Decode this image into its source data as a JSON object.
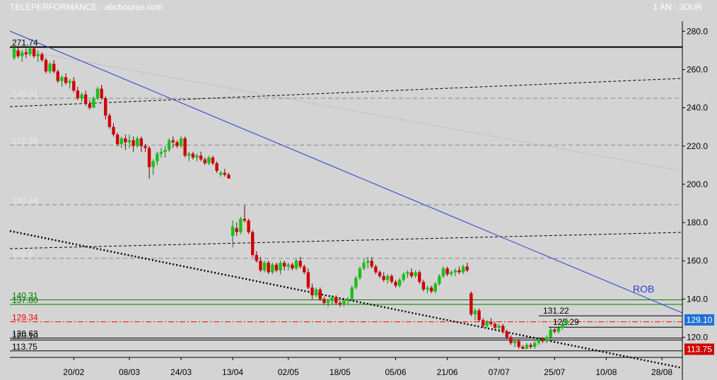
{
  "header": {
    "title": "TELEPERFORMANCE - abcbourse.com",
    "period": "1 AN - JOUR"
  },
  "chart_data": {
    "type": "candlestick",
    "ylim": [
      109,
      287
    ],
    "y_ticks": [
      120,
      140,
      160,
      180,
      200,
      220,
      240,
      260,
      280
    ],
    "y_tick_labels": [
      "120.0",
      "140.0",
      "160.0",
      "180.0",
      "200.0",
      "220.0",
      "240.0",
      "260.0",
      "280.0"
    ],
    "x_labels": [
      "20/02",
      "08/03",
      "24/03",
      "13/04",
      "02/05",
      "18/05",
      "05/06",
      "21/06",
      "07/07",
      "25/07",
      "10/08",
      "28/08"
    ],
    "x_label_index": [
      15,
      29,
      42,
      55,
      69,
      82,
      96,
      109,
      122,
      136,
      149,
      163
    ],
    "grid": false,
    "horizontal_levels": [
      {
        "label": "271.74",
        "value": 271.74,
        "color": "#000000",
        "style": "solid"
      },
      {
        "label": "245.91",
        "value": 245.0,
        "color": "#888888",
        "style": "dash"
      },
      {
        "label": "221.26",
        "value": 220.5,
        "color": "#888888",
        "style": "dash"
      },
      {
        "label": "190.44",
        "value": 189.3,
        "color": "#888888",
        "style": "dash"
      },
      {
        "label": "163.6",
        "value": 161.3,
        "color": "#888888",
        "style": "dash"
      },
      {
        "label": "140.31",
        "value": 139.6,
        "color": "#008000",
        "style": "solid"
      },
      {
        "label": "137.80",
        "value": 137.2,
        "color": "#008000",
        "style": "solid"
      },
      {
        "label": "129.34",
        "value": 128.1,
        "color": "#ff0000",
        "style": "dashdot"
      },
      {
        "label": "120.63",
        "value": 119.6,
        "color": "#000000",
        "style": "solid"
      },
      {
        "label": "120.10",
        "value": 118.6,
        "color": "#000000",
        "style": "solid"
      },
      {
        "label": "113.75",
        "value": 112.9,
        "color": "#000000",
        "style": "solid"
      }
    ],
    "inline_levels": [
      {
        "label": "131.22",
        "value": 131.22
      },
      {
        "label": "125.29",
        "value": 125.29
      }
    ],
    "last_price": {
      "label": "129.10",
      "value": 129.1,
      "color": "#1e6fd6"
    },
    "low_marker": {
      "label": "113.75",
      "value": 113.75,
      "color": "#d10000"
    },
    "trend_label": "ROB",
    "candles": [
      {
        "o": 266,
        "h": 272,
        "l": 265,
        "c": 271
      },
      {
        "o": 270,
        "h": 272,
        "l": 266,
        "c": 267
      },
      {
        "o": 267,
        "h": 270,
        "l": 264,
        "c": 269
      },
      {
        "o": 269,
        "h": 271,
        "l": 266,
        "c": 268
      },
      {
        "o": 268,
        "h": 272,
        "l": 267,
        "c": 271
      },
      {
        "o": 271,
        "h": 272,
        "l": 266,
        "c": 267
      },
      {
        "o": 267,
        "h": 270,
        "l": 264,
        "c": 268
      },
      {
        "o": 268,
        "h": 269,
        "l": 264,
        "c": 265
      },
      {
        "o": 265,
        "h": 266,
        "l": 258,
        "c": 259
      },
      {
        "o": 259,
        "h": 264,
        "l": 258,
        "c": 263
      },
      {
        "o": 263,
        "h": 265,
        "l": 258,
        "c": 259
      },
      {
        "o": 259,
        "h": 260,
        "l": 253,
        "c": 254
      },
      {
        "o": 254,
        "h": 257,
        "l": 251,
        "c": 256
      },
      {
        "o": 256,
        "h": 258,
        "l": 252,
        "c": 253
      },
      {
        "o": 253,
        "h": 255,
        "l": 250,
        "c": 254
      },
      {
        "o": 254,
        "h": 256,
        "l": 248,
        "c": 249
      },
      {
        "o": 249,
        "h": 251,
        "l": 244,
        "c": 245
      },
      {
        "o": 245,
        "h": 248,
        "l": 243,
        "c": 247
      },
      {
        "o": 247,
        "h": 249,
        "l": 241,
        "c": 242
      },
      {
        "o": 242,
        "h": 244,
        "l": 239,
        "c": 240
      },
      {
        "o": 240,
        "h": 246,
        "l": 240,
        "c": 245
      },
      {
        "o": 245,
        "h": 251,
        "l": 244,
        "c": 250
      },
      {
        "o": 250,
        "h": 252,
        "l": 244,
        "c": 245
      },
      {
        "o": 245,
        "h": 246,
        "l": 234,
        "c": 236
      },
      {
        "o": 236,
        "h": 237,
        "l": 229,
        "c": 230
      },
      {
        "o": 230,
        "h": 232,
        "l": 225,
        "c": 226
      },
      {
        "o": 226,
        "h": 227,
        "l": 220,
        "c": 221
      },
      {
        "o": 221,
        "h": 225,
        "l": 219,
        "c": 224
      },
      {
        "o": 224,
        "h": 226,
        "l": 218,
        "c": 222
      },
      {
        "o": 222,
        "h": 226,
        "l": 219,
        "c": 223
      },
      {
        "o": 223,
        "h": 225,
        "l": 217,
        "c": 220
      },
      {
        "o": 220,
        "h": 225,
        "l": 219,
        "c": 224
      },
      {
        "o": 224,
        "h": 225,
        "l": 217,
        "c": 220
      },
      {
        "o": 220,
        "h": 221,
        "l": 217,
        "c": 219
      },
      {
        "o": 219,
        "h": 220,
        "l": 203,
        "c": 209
      },
      {
        "o": 209,
        "h": 213,
        "l": 205,
        "c": 212
      },
      {
        "o": 212,
        "h": 217,
        "l": 210,
        "c": 216
      },
      {
        "o": 216,
        "h": 219,
        "l": 214,
        "c": 217
      },
      {
        "o": 217,
        "h": 220,
        "l": 214,
        "c": 218
      },
      {
        "o": 218,
        "h": 224,
        "l": 217,
        "c": 223
      },
      {
        "o": 223,
        "h": 225,
        "l": 219,
        "c": 222
      },
      {
        "o": 222,
        "h": 223,
        "l": 219,
        "c": 220
      },
      {
        "o": 220,
        "h": 225,
        "l": 219,
        "c": 224
      },
      {
        "o": 224,
        "h": 225,
        "l": 214,
        "c": 215
      },
      {
        "o": 215,
        "h": 217,
        "l": 212,
        "c": 216
      },
      {
        "o": 216,
        "h": 217,
        "l": 213,
        "c": 214
      },
      {
        "o": 214,
        "h": 216,
        "l": 212,
        "c": 215
      },
      {
        "o": 215,
        "h": 217,
        "l": 212,
        "c": 213
      },
      {
        "o": 213,
        "h": 214,
        "l": 210,
        "c": 211
      },
      {
        "o": 211,
        "h": 215,
        "l": 210,
        "c": 214
      },
      {
        "o": 214,
        "h": 215,
        "l": 210,
        "c": 211
      },
      {
        "o": 211,
        "h": 212,
        "l": 206,
        "c": 207
      },
      {
        "o": 205,
        "h": 207,
        "l": 204,
        "c": 206
      },
      {
        "o": 206,
        "h": 208,
        "l": 204,
        "c": 205
      },
      {
        "o": 205,
        "h": 206,
        "l": 203,
        "c": 203
      },
      {
        "o": 173,
        "h": 181,
        "l": 167,
        "c": 178
      },
      {
        "o": 177,
        "h": 180,
        "l": 173,
        "c": 175
      },
      {
        "o": 175,
        "h": 183,
        "l": 174,
        "c": 182
      },
      {
        "o": 182,
        "h": 189,
        "l": 180,
        "c": 181
      },
      {
        "o": 181,
        "h": 182,
        "l": 174,
        "c": 175
      },
      {
        "o": 175,
        "h": 176,
        "l": 162,
        "c": 163
      },
      {
        "o": 163,
        "h": 165,
        "l": 159,
        "c": 160
      },
      {
        "o": 160,
        "h": 162,
        "l": 154,
        "c": 155
      },
      {
        "o": 155,
        "h": 160,
        "l": 154,
        "c": 159
      },
      {
        "o": 159,
        "h": 160,
        "l": 153,
        "c": 154
      },
      {
        "o": 154,
        "h": 159,
        "l": 153,
        "c": 158
      },
      {
        "o": 158,
        "h": 159,
        "l": 154,
        "c": 155
      },
      {
        "o": 155,
        "h": 160,
        "l": 153,
        "c": 159
      },
      {
        "o": 159,
        "h": 160,
        "l": 155,
        "c": 157
      },
      {
        "o": 157,
        "h": 159,
        "l": 155,
        "c": 158
      },
      {
        "o": 158,
        "h": 159,
        "l": 155,
        "c": 156
      },
      {
        "o": 156,
        "h": 161,
        "l": 155,
        "c": 160
      },
      {
        "o": 160,
        "h": 162,
        "l": 156,
        "c": 157
      },
      {
        "o": 157,
        "h": 158,
        "l": 153,
        "c": 154
      },
      {
        "o": 154,
        "h": 156,
        "l": 145,
        "c": 146
      },
      {
        "o": 146,
        "h": 148,
        "l": 140,
        "c": 142
      },
      {
        "o": 142,
        "h": 146,
        "l": 141,
        "c": 145
      },
      {
        "o": 145,
        "h": 146,
        "l": 139,
        "c": 140
      },
      {
        "o": 140,
        "h": 141,
        "l": 137,
        "c": 138
      },
      {
        "o": 138,
        "h": 140,
        "l": 136,
        "c": 139
      },
      {
        "o": 139,
        "h": 142,
        "l": 137,
        "c": 141
      },
      {
        "o": 141,
        "h": 142,
        "l": 137,
        "c": 138
      },
      {
        "o": 138,
        "h": 139,
        "l": 136,
        "c": 137
      },
      {
        "o": 137,
        "h": 140,
        "l": 136,
        "c": 139
      },
      {
        "o": 139,
        "h": 141,
        "l": 137,
        "c": 140
      },
      {
        "o": 140,
        "h": 147,
        "l": 139,
        "c": 146
      },
      {
        "o": 146,
        "h": 152,
        "l": 145,
        "c": 151
      },
      {
        "o": 151,
        "h": 157,
        "l": 150,
        "c": 156
      },
      {
        "o": 156,
        "h": 161,
        "l": 155,
        "c": 159
      },
      {
        "o": 159,
        "h": 162,
        "l": 156,
        "c": 160
      },
      {
        "o": 160,
        "h": 162,
        "l": 156,
        "c": 157
      },
      {
        "o": 157,
        "h": 158,
        "l": 153,
        "c": 154
      },
      {
        "o": 154,
        "h": 155,
        "l": 151,
        "c": 152
      },
      {
        "o": 152,
        "h": 154,
        "l": 149,
        "c": 150
      },
      {
        "o": 150,
        "h": 153,
        "l": 148,
        "c": 152
      },
      {
        "o": 152,
        "h": 153,
        "l": 148,
        "c": 149
      },
      {
        "o": 149,
        "h": 150,
        "l": 146,
        "c": 147
      },
      {
        "o": 147,
        "h": 151,
        "l": 146,
        "c": 150
      },
      {
        "o": 150,
        "h": 154,
        "l": 149,
        "c": 153
      },
      {
        "o": 153,
        "h": 155,
        "l": 151,
        "c": 154
      },
      {
        "o": 154,
        "h": 156,
        "l": 151,
        "c": 152
      },
      {
        "o": 152,
        "h": 155,
        "l": 151,
        "c": 154
      },
      {
        "o": 154,
        "h": 155,
        "l": 148,
        "c": 149
      },
      {
        "o": 149,
        "h": 150,
        "l": 144,
        "c": 145
      },
      {
        "o": 145,
        "h": 147,
        "l": 143,
        "c": 146
      },
      {
        "o": 146,
        "h": 147,
        "l": 143,
        "c": 144
      },
      {
        "o": 144,
        "h": 149,
        "l": 143,
        "c": 148
      },
      {
        "o": 148,
        "h": 153,
        "l": 147,
        "c": 152
      },
      {
        "o": 152,
        "h": 157,
        "l": 151,
        "c": 156
      },
      {
        "o": 156,
        "h": 157,
        "l": 152,
        "c": 153
      },
      {
        "o": 153,
        "h": 155,
        "l": 152,
        "c": 154
      },
      {
        "o": 154,
        "h": 156,
        "l": 152,
        "c": 155
      },
      {
        "o": 155,
        "h": 157,
        "l": 153,
        "c": 154
      },
      {
        "o": 154,
        "h": 158,
        "l": 153,
        "c": 157
      },
      {
        "o": 157,
        "h": 159,
        "l": 154,
        "c": 155
      },
      {
        "o": 143,
        "h": 144,
        "l": 131,
        "c": 132
      },
      {
        "o": 132,
        "h": 135,
        "l": 129,
        "c": 134
      },
      {
        "o": 134,
        "h": 135,
        "l": 128,
        "c": 129
      },
      {
        "o": 129,
        "h": 130,
        "l": 125,
        "c": 126
      },
      {
        "o": 126,
        "h": 129,
        "l": 125,
        "c": 128
      },
      {
        "o": 128,
        "h": 130,
        "l": 126,
        "c": 127
      },
      {
        "o": 127,
        "h": 128,
        "l": 124,
        "c": 125
      },
      {
        "o": 125,
        "h": 127,
        "l": 124,
        "c": 126
      },
      {
        "o": 126,
        "h": 127,
        "l": 122,
        "c": 123
      },
      {
        "o": 123,
        "h": 124,
        "l": 119,
        "c": 120
      },
      {
        "o": 120,
        "h": 121,
        "l": 116,
        "c": 117
      },
      {
        "o": 117,
        "h": 119,
        "l": 115,
        "c": 118
      },
      {
        "o": 118,
        "h": 119,
        "l": 114,
        "c": 115
      },
      {
        "o": 115,
        "h": 116,
        "l": 113.75,
        "c": 114
      },
      {
        "o": 114,
        "h": 117,
        "l": 113.75,
        "c": 116
      },
      {
        "o": 116,
        "h": 117,
        "l": 114,
        "c": 115
      },
      {
        "o": 115,
        "h": 118,
        "l": 114,
        "c": 117
      },
      {
        "o": 117,
        "h": 120,
        "l": 116,
        "c": 119
      },
      {
        "o": 119,
        "h": 120,
        "l": 117,
        "c": 118
      },
      {
        "o": 118,
        "h": 121,
        "l": 117,
        "c": 120
      },
      {
        "o": 120,
        "h": 125,
        "l": 119,
        "c": 124
      },
      {
        "o": 124,
        "h": 125,
        "l": 122,
        "c": 123
      },
      {
        "o": 123,
        "h": 126,
        "l": 122,
        "c": 125
      },
      {
        "o": 125,
        "h": 128,
        "l": 124,
        "c": 127
      },
      {
        "o": 127,
        "h": 130,
        "l": 126,
        "c": 129.1
      }
    ]
  }
}
